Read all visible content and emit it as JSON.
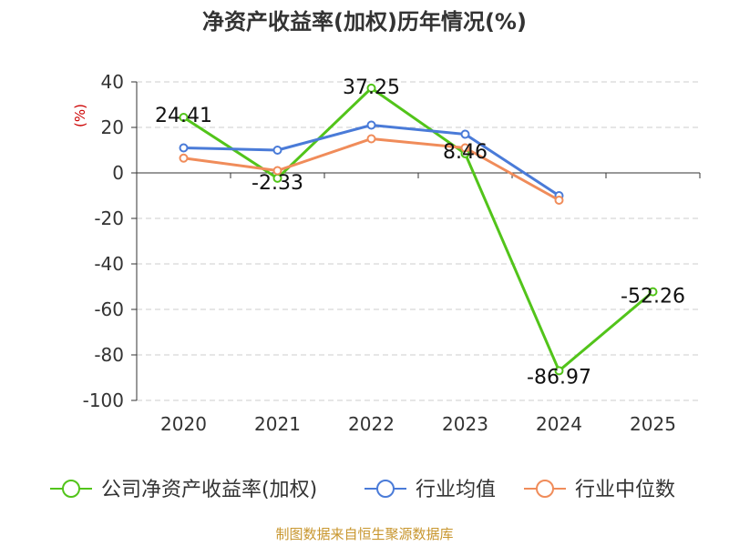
{
  "chart_data": {
    "type": "line",
    "title": "净资产收益率(加权)历年情况(%)",
    "ylabel": "(%)",
    "xlabel": "",
    "ylim": [
      -100,
      40
    ],
    "yticks": [
      40,
      20,
      0,
      -20,
      -40,
      -60,
      -80,
      -100
    ],
    "categories": [
      "2020",
      "2021",
      "2022",
      "2023",
      "2024",
      "2025"
    ],
    "grid": true,
    "legend_position": "bottom",
    "series": [
      {
        "name": "公司净资产收益率(加权)",
        "color": "#52c41a",
        "values": [
          24.41,
          -2.33,
          37.25,
          8.46,
          -86.97,
          -52.26
        ],
        "labels": [
          "24.41",
          "-2.33",
          "37.25",
          "8.46",
          "-86.97",
          "-52.26"
        ]
      },
      {
        "name": "行业均值",
        "color": "#4a7bd8",
        "values": [
          11,
          10,
          21,
          17,
          -10,
          null
        ]
      },
      {
        "name": "行业中位数",
        "color": "#f08c5a",
        "values": [
          6.5,
          1,
          15,
          11,
          -12,
          null
        ]
      }
    ]
  },
  "source": "制图数据来自恒生聚源数据库"
}
